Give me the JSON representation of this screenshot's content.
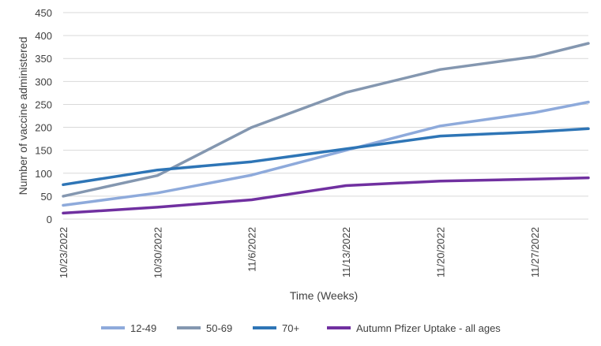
{
  "chart_data": {
    "type": "line",
    "title": "",
    "xlabel": "Time (Weeks)",
    "ylabel": "Number of vaccine administered",
    "x_dates": [
      "2022-10-23",
      "2022-10-30",
      "2022-11-06",
      "2022-11-13",
      "2022-11-20",
      "2022-11-27",
      "2022-12-01"
    ],
    "x_tick_labels": [
      "10/23/2022",
      "10/30/2022",
      "11/6/2022",
      "11/13/2022",
      "11/20/2022",
      "11/27/2022"
    ],
    "xlim": [
      "2022-10-23",
      "2022-12-01"
    ],
    "ylim": [
      0,
      450
    ],
    "y_ticks": [
      0,
      50,
      100,
      150,
      200,
      250,
      300,
      350,
      400,
      450
    ],
    "grid": "horizontal",
    "legend_position": "bottom",
    "series": [
      {
        "name": "12-49",
        "color": "#8eaadb",
        "values": [
          30,
          57,
          96,
          150,
          203,
          232,
          255
        ]
      },
      {
        "name": "50-69",
        "color": "#8497b0",
        "values": [
          50,
          95,
          200,
          276,
          326,
          354,
          383
        ]
      },
      {
        "name": "70+",
        "color": "#2e75b6",
        "values": [
          75,
          107,
          125,
          153,
          181,
          190,
          197
        ]
      },
      {
        "name": "Autumn Pfizer Uptake - all ages",
        "color": "#7030a0",
        "values": [
          13,
          26,
          42,
          73,
          83,
          87,
          90
        ]
      }
    ]
  }
}
